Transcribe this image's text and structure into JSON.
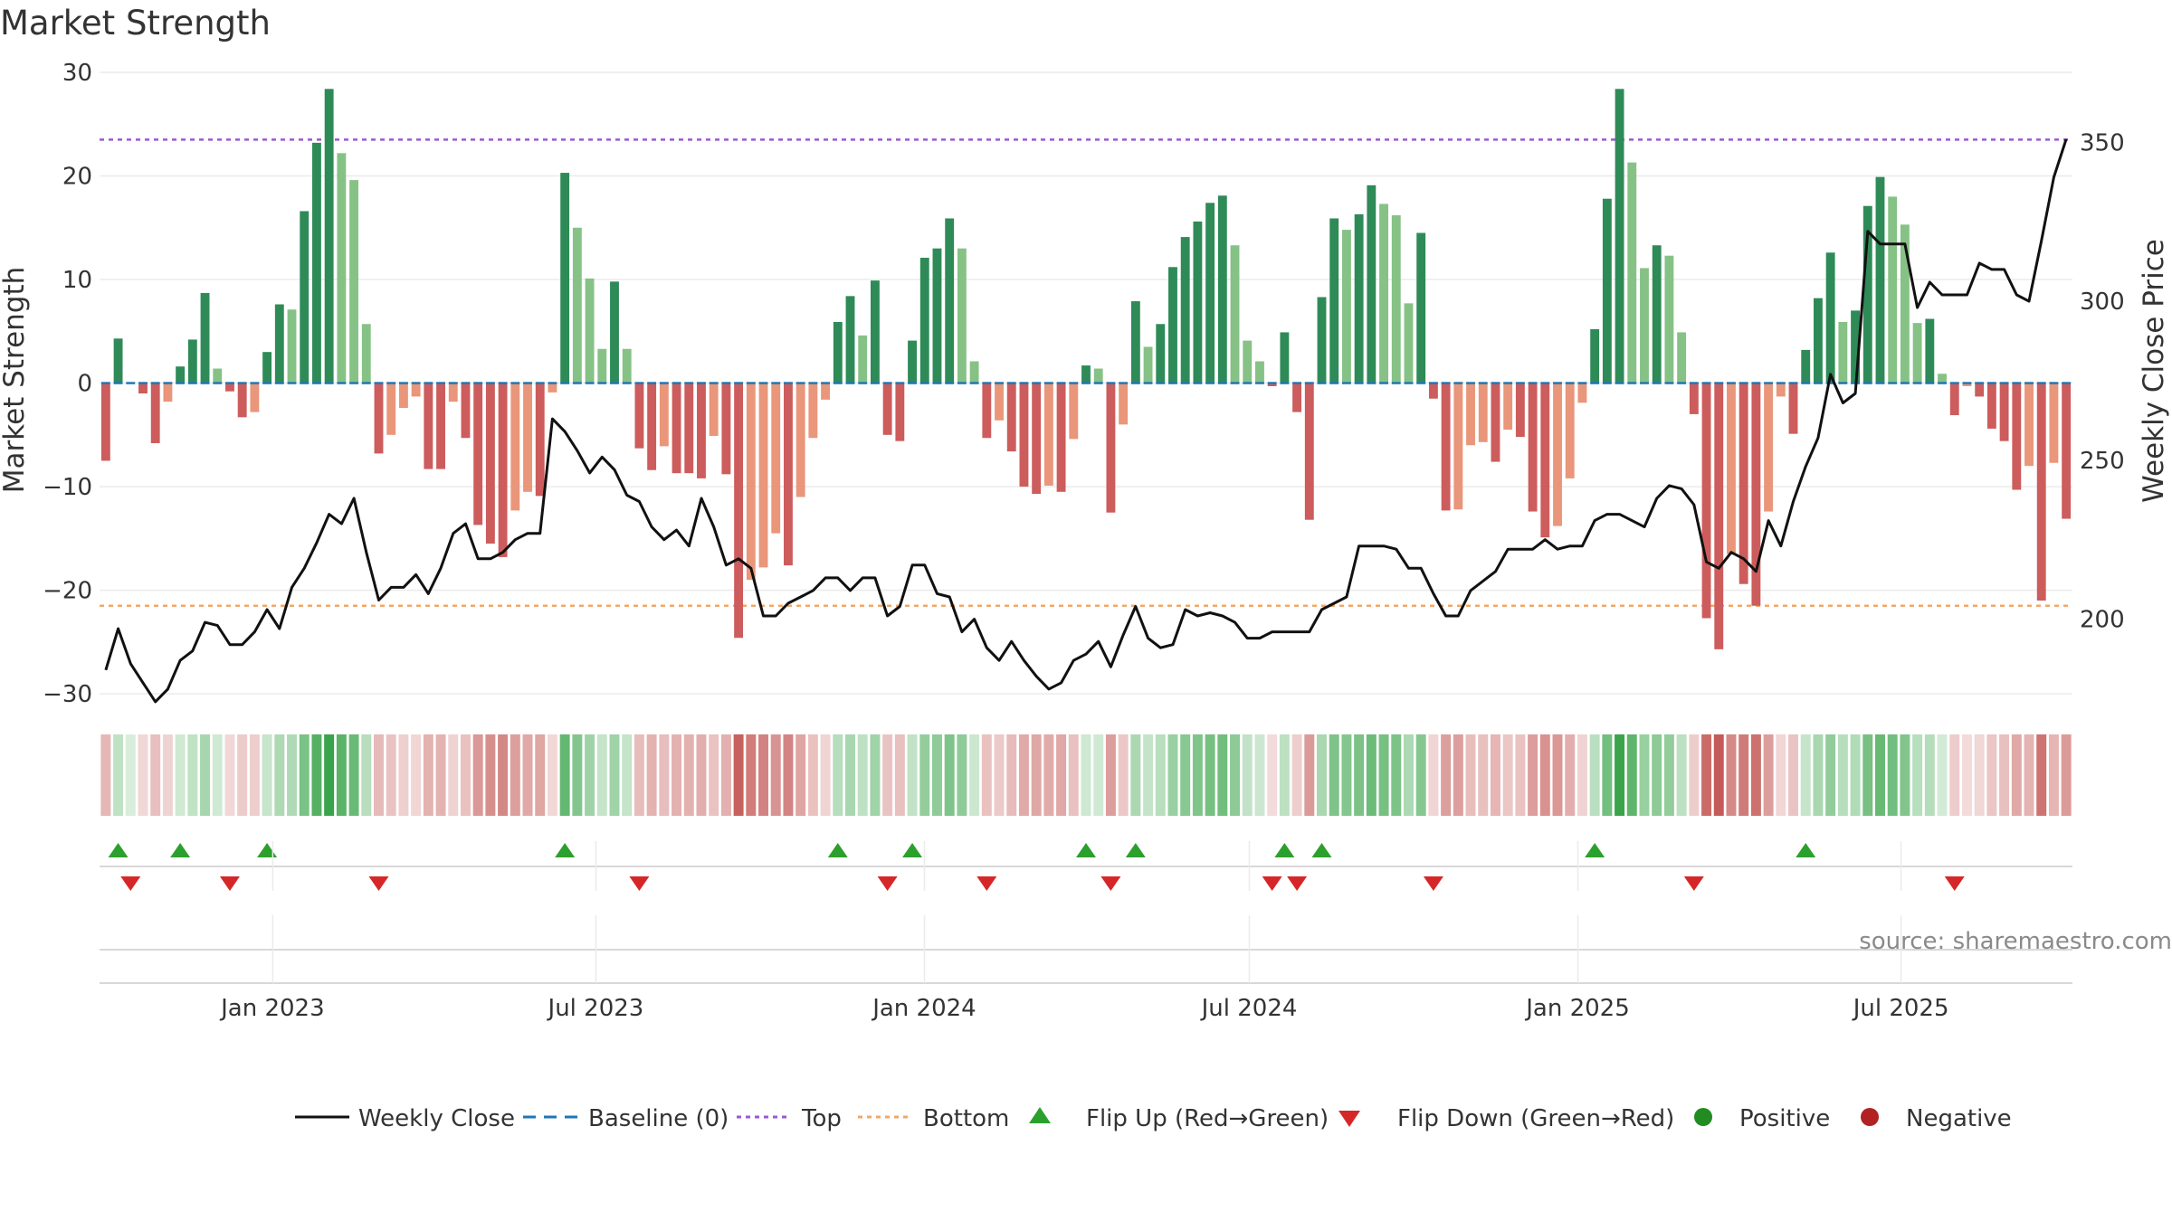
{
  "chart_data": {
    "type": "bar",
    "title": "Market Strength",
    "ylabel": "Market Strength",
    "y2label": "Weekly Close Price",
    "ylim": [
      -32,
      30
    ],
    "y2lim": [
      170,
      372
    ],
    "yticks": [
      30,
      20,
      10,
      0,
      -10,
      -20,
      -30
    ],
    "ytick_labels": [
      "30",
      "20",
      "10",
      "0",
      "−10",
      "−20",
      "−30"
    ],
    "y2ticks": [
      350,
      300,
      250,
      200
    ],
    "y2tick_labels": [
      "350",
      "300",
      "250",
      "200"
    ],
    "x_start": "2022-09-26",
    "x_end": "2025-10-05",
    "weeks": 157,
    "xticks": [
      {
        "date": "2023-01-01",
        "label": "Jan 2023"
      },
      {
        "date": "2023-07-01",
        "label": "Jul 2023"
      },
      {
        "date": "2024-01-01",
        "label": "Jan 2024"
      },
      {
        "date": "2024-07-01",
        "label": "Jul 2024"
      },
      {
        "date": "2025-01-01",
        "label": "Jan 2025"
      },
      {
        "date": "2025-07-01",
        "label": "Jul 2025"
      }
    ],
    "top_line": 23.5,
    "bottom_line": -21.5,
    "colors": {
      "strong_pos": "#2e8b57",
      "weak_pos": "#86c286",
      "strong_neg": "#cd5c5c",
      "weak_neg": "#e9967a",
      "close_line": "#111111",
      "baseline": "#1f77b4",
      "top": "#9b59d0",
      "bottom": "#f0a868",
      "flip_up": "#2ca02c",
      "flip_down": "#d62728",
      "positive": "#228b22",
      "negative": "#b22222"
    },
    "strength": [
      -7.5,
      4.3,
      0,
      -1,
      -5.8,
      -1.8,
      1.6,
      4.2,
      8.7,
      1.4,
      -0.8,
      -3.3,
      -2.8,
      3,
      7.6,
      7.1,
      16.6,
      23.2,
      28.4,
      22.2,
      19.6,
      5.7,
      -6.8,
      -5,
      -2.4,
      -1.3,
      -8.3,
      -8.3,
      -1.8,
      -5.3,
      -13.7,
      -15.5,
      -16.8,
      -12.3,
      -10.5,
      -10.9,
      -0.9,
      20.3,
      15,
      10.1,
      3.3,
      9.8,
      3.3,
      -6.3,
      -8.4,
      -6.1,
      -8.7,
      -8.7,
      -9.2,
      -5.1,
      -8.8,
      -24.6,
      -19,
      -17.8,
      -14.5,
      -17.6,
      -11,
      -5.3,
      -1.6,
      5.9,
      8.4,
      4.6,
      9.9,
      -5,
      -5.6,
      4.1,
      12.1,
      13,
      15.9,
      13,
      2.1,
      -5.3,
      -3.6,
      -6.6,
      -10,
      -10.7,
      -9.9,
      -10.5,
      -5.4,
      1.7,
      1.4,
      -12.5,
      -4,
      7.9,
      3.5,
      5.7,
      11.2,
      14.1,
      15.6,
      17.4,
      18.1,
      13.3,
      4.1,
      2.1,
      -0.3,
      4.9,
      -2.8,
      -13.2,
      8.3,
      15.9,
      14.8,
      16.3,
      19.1,
      17.3,
      16.2,
      7.7,
      14.5,
      -1.5,
      -12.3,
      -12.2,
      -6,
      -5.7,
      -7.6,
      -4.5,
      -5.2,
      -12.4,
      -14.9,
      -13.8,
      -9.2,
      -1.9,
      5.2,
      17.8,
      28.4,
      21.3,
      11.1,
      13.3,
      12.3,
      4.9,
      -3,
      -22.7,
      -25.7,
      -16.5,
      -19.4,
      -21.5,
      -12.4,
      -1.3,
      -4.9,
      3.2,
      8.2,
      12.6,
      5.9,
      7,
      17.1,
      19.9,
      18,
      15.3,
      5.8,
      6.2,
      0.9,
      -3.1,
      -0.3,
      -1.3,
      -4.4,
      -5.6,
      -10.3,
      -8,
      -21,
      -7.7,
      -13.1
    ],
    "close": [
      184,
      197,
      186,
      180,
      174,
      178,
      187,
      190,
      199,
      198,
      192,
      192,
      196,
      203,
      197,
      210,
      216,
      224,
      233,
      230,
      238,
      221,
      206,
      210,
      210,
      214,
      208,
      216,
      227,
      230,
      219,
      219,
      221,
      225,
      227,
      227,
      263,
      259,
      253,
      246,
      251,
      247,
      239,
      237,
      229,
      225,
      228,
      223,
      238,
      229,
      217,
      219,
      216,
      201,
      201,
      205,
      207,
      209,
      213,
      213,
      209,
      213,
      213,
      201,
      204,
      217,
      217,
      208,
      207,
      196,
      200,
      191,
      187,
      193,
      187,
      182,
      178,
      180,
      187,
      189,
      193,
      185,
      195,
      204,
      194,
      191,
      192,
      203,
      201,
      202,
      201,
      199,
      194,
      194,
      196,
      196,
      196,
      196,
      203,
      205,
      207,
      223,
      223,
      223,
      222,
      216,
      216,
      208,
      201,
      201,
      209,
      212,
      215,
      222,
      222,
      222,
      225,
      222,
      223,
      223,
      231,
      233,
      233,
      231,
      229,
      238,
      242,
      241,
      236,
      218,
      216,
      221,
      219,
      215,
      231,
      223,
      237,
      248,
      257,
      277,
      268,
      271,
      322,
      318,
      318,
      318,
      298,
      306,
      302,
      302,
      302,
      312,
      310,
      310,
      302,
      300,
      319,
      339,
      351
    ]
  },
  "legend": {
    "weekly_close": "Weekly Close",
    "baseline": "Baseline (0)",
    "top": "Top",
    "bottom": "Bottom",
    "flip_up": "Flip Up (Red→Green)",
    "flip_down": "Flip Down (Green→Red)",
    "positive": "Positive",
    "negative": "Negative"
  },
  "source": "source: sharemaestro.com"
}
